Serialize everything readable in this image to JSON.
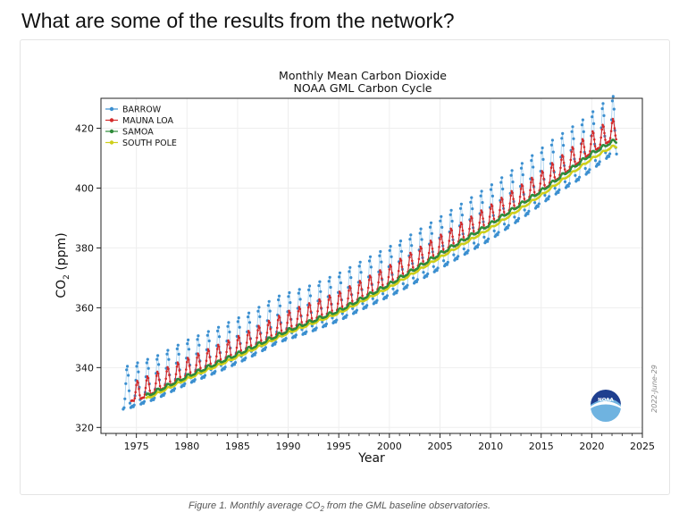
{
  "page": {
    "heading": "What are some of the results from the network?",
    "caption_prefix": "Figure 1. Monthly average CO",
    "caption_sub": "2",
    "caption_suffix": " from the GML baseline observatories."
  },
  "colors": {
    "barrow": "#3b8fd0",
    "mauna_loa": "#d42a2a",
    "samoa": "#2e8b3a",
    "south_pole": "#cfcf1a",
    "barrow_fill": "#a9d2ef"
  },
  "logo": {
    "text": "NOAA"
  },
  "chart_data": {
    "type": "line",
    "title": "Monthly Mean Carbon Dioxide",
    "subtitle": "NOAA GML Carbon Cycle",
    "xlabel": "Year",
    "ylabel_main": "CO",
    "ylabel_sub": "2",
    "ylabel_units": " (ppm)",
    "xlim": [
      1971.5,
      2025
    ],
    "ylim": [
      318,
      430
    ],
    "xticks": [
      1975,
      1980,
      1985,
      1990,
      1995,
      2000,
      2005,
      2010,
      2015,
      2020,
      2025
    ],
    "yticks": [
      320,
      340,
      360,
      380,
      400,
      420
    ],
    "grid": true,
    "legend_position": "top-left",
    "date_stamp": "2022-June-29",
    "series": [
      {
        "name": "BARROW",
        "color": "#3b8fd0",
        "start_year": 1973.7,
        "end_year": 2022.45,
        "x": [
          1974,
          1977,
          1980,
          1983,
          1986,
          1989,
          1992,
          1995,
          1998,
          2001,
          2004,
          2007,
          2010,
          2013,
          2016,
          2019,
          2022
        ],
        "mean": [
          331.0,
          334.5,
          339.5,
          343.6,
          348.2,
          353.7,
          357.0,
          361.1,
          366.2,
          371.2,
          377.0,
          383.0,
          389.0,
          396.0,
          403.5,
          410.0,
          418.0
        ],
        "amplitude": [
          7.0,
          7.0,
          7.2,
          7.3,
          7.4,
          7.6,
          7.6,
          7.8,
          8.0,
          8.2,
          8.4,
          8.6,
          8.9,
          9.0,
          9.2,
          9.4,
          9.5
        ]
      },
      {
        "name": "MAUNA LOA",
        "color": "#d42a2a",
        "start_year": 1974.5,
        "end_year": 2022.45,
        "x": [
          1975,
          1980,
          1985,
          1990,
          1995,
          2000,
          2005,
          2010,
          2015,
          2020,
          2022
        ],
        "mean": [
          331.1,
          338.8,
          346.1,
          354.4,
          360.8,
          369.7,
          379.8,
          389.9,
          401.0,
          414.2,
          418.5
        ],
        "amplitude": [
          3.2,
          3.2,
          3.2,
          3.3,
          3.3,
          3.3,
          3.3,
          3.3,
          3.3,
          3.4,
          3.4
        ]
      },
      {
        "name": "SAMOA",
        "color": "#2e8b3a",
        "start_year": 1976.0,
        "end_year": 2022.45,
        "x": [
          1976,
          1980,
          1985,
          1990,
          1995,
          2000,
          2005,
          2010,
          2015,
          2020,
          2022
        ],
        "mean": [
          330.5,
          337.0,
          344.5,
          352.4,
          359.0,
          367.8,
          378.0,
          388.0,
          399.0,
          411.5,
          415.5
        ],
        "amplitude": [
          0.5,
          0.5,
          0.5,
          0.5,
          0.5,
          0.5,
          0.5,
          0.5,
          0.5,
          0.5,
          0.5
        ]
      },
      {
        "name": "SOUTH POLE",
        "color": "#cfcf1a",
        "start_year": 1976.0,
        "end_year": 2022.45,
        "x": [
          1976,
          1980,
          1985,
          1990,
          1995,
          2000,
          2005,
          2010,
          2015,
          2020,
          2022
        ],
        "mean": [
          329.6,
          336.2,
          343.6,
          351.6,
          358.2,
          366.8,
          376.8,
          386.6,
          397.6,
          409.8,
          413.8
        ],
        "amplitude": [
          0.3,
          0.3,
          0.3,
          0.3,
          0.3,
          0.3,
          0.3,
          0.3,
          0.3,
          0.3,
          0.3
        ]
      }
    ]
  }
}
